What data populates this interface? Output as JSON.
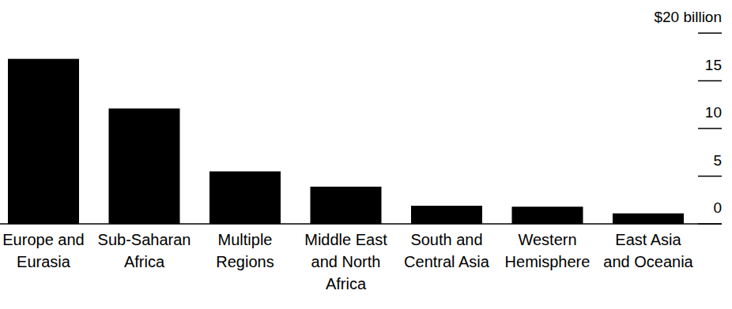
{
  "chart_data": {
    "type": "bar",
    "categories": [
      "Europe and Eurasia",
      "Sub-Saharan Africa",
      "Multiple Regions",
      "Middle East and North Africa",
      "South and Central Asia",
      "Western Hemisphere",
      "East Asia and Oceania"
    ],
    "values": [
      17.3,
      12.1,
      5.5,
      3.9,
      1.9,
      1.8,
      1.1
    ],
    "color": "#000000",
    "ylim": [
      0,
      20
    ],
    "yticks": [
      0,
      5,
      10,
      15,
      {
        "value": 20,
        "label": "$20 billion"
      }
    ],
    "grid": false
  }
}
